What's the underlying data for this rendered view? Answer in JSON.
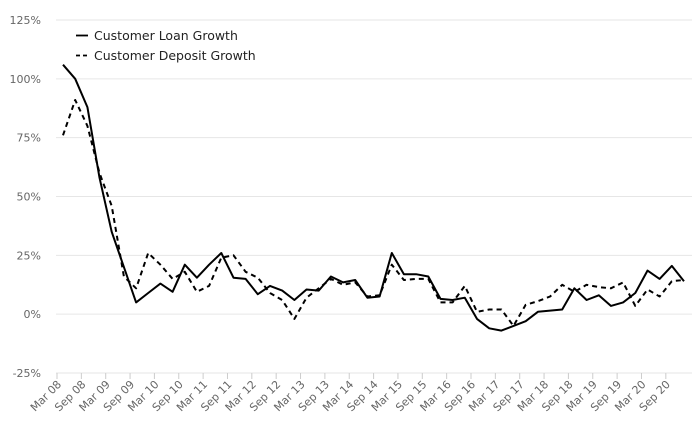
{
  "chart_data": {
    "type": "line",
    "y_tick_labels": [
      "125%",
      "100%",
      "75%",
      "50%",
      "25%",
      "0%",
      "-25%"
    ],
    "ylim": [
      -25,
      125
    ],
    "x_tick_labels": [
      "Mar 08",
      "Sep 08",
      "Mar 09",
      "Sep 09",
      "Mar 10",
      "Sep 10",
      "Mar 11",
      "Sep 11",
      "Mar 12",
      "Sep 12",
      "Mar 13",
      "Sep 13",
      "Mar 14",
      "Sep 14",
      "Mar 15",
      "Sep 15",
      "Mar 16",
      "Sep 16",
      "Mar 17",
      "Sep 17",
      "Mar 18",
      "Sep 18",
      "Mar 19",
      "Sep 19",
      "Mar 20",
      "Sep 20"
    ],
    "grid": true,
    "legend_position": "top-left",
    "series": [
      {
        "name": "Customer Loan Growth",
        "style": "solid",
        "color": "#000000",
        "values": [
          106,
          100,
          88,
          58,
          35,
          20,
          5,
          9,
          13,
          9.5,
          21,
          15.5,
          21,
          26,
          15.5,
          15,
          8.5,
          12,
          10,
          6,
          10.5,
          10,
          16,
          13.5,
          14.5,
          7,
          7.5,
          26,
          17,
          17,
          16,
          6.5,
          6,
          7,
          -2,
          -6,
          -7,
          -5,
          -3,
          1,
          1.5,
          2,
          11,
          6,
          8,
          3.5,
          5,
          9,
          18.5,
          15,
          20.5,
          14
        ]
      },
      {
        "name": "Customer Deposit Growth",
        "style": "dashed",
        "color": "#000000",
        "values": [
          76,
          91,
          80,
          60,
          46,
          16,
          11,
          26,
          21,
          15,
          18,
          9.5,
          12,
          24,
          25,
          18,
          15.5,
          9,
          6,
          -2,
          7,
          11,
          15,
          12.5,
          13.5,
          7.5,
          8,
          21,
          14.5,
          15,
          15,
          5,
          5,
          12,
          1,
          2,
          2,
          -5,
          4,
          5.5,
          7.5,
          12.5,
          9.5,
          12.5,
          11.5,
          11,
          13.5,
          3.5,
          10.5,
          7.5,
          14,
          14.5
        ]
      }
    ]
  }
}
